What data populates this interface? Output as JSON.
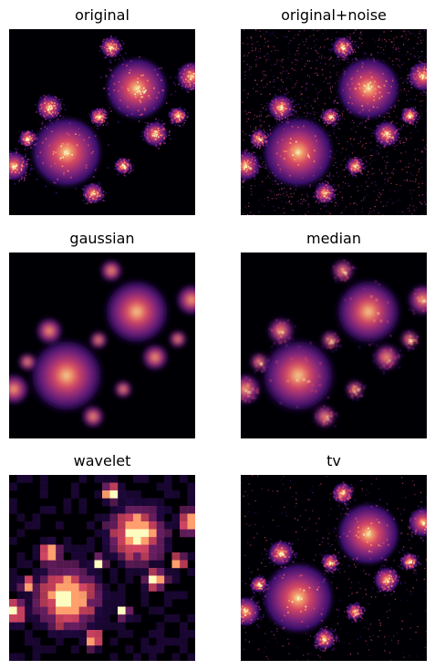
{
  "panels": [
    {
      "title": "original",
      "style": "sharp"
    },
    {
      "title": "original+noise",
      "style": "noisy"
    },
    {
      "title": "gaussian",
      "style": "blur"
    },
    {
      "title": "median",
      "style": "median"
    },
    {
      "title": "wavelet",
      "style": "blocky"
    },
    {
      "title": "tv",
      "style": "tv"
    }
  ],
  "colormap": "magma",
  "colors": {
    "background": "#000004",
    "dark_purple": "#3b0f70",
    "purple": "#8c2981",
    "magenta": "#de4968",
    "orange": "#fe9f6d",
    "light": "#fcfdbf"
  }
}
